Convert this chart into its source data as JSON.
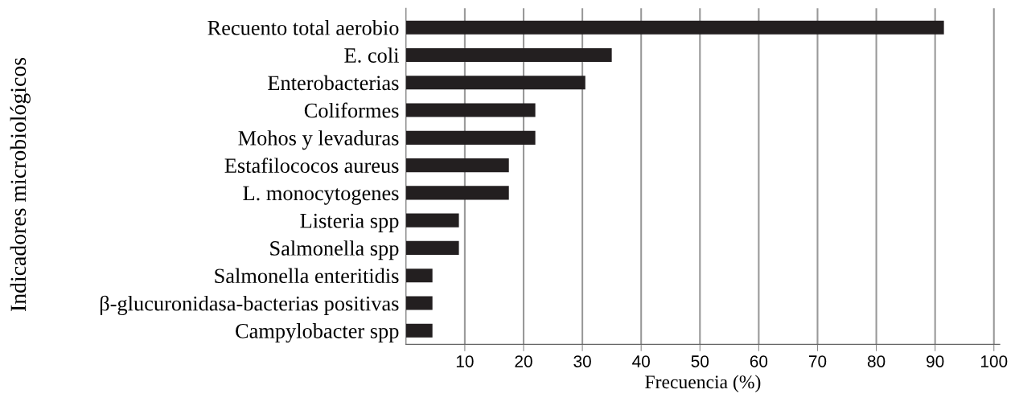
{
  "chart_data": {
    "type": "bar",
    "orientation": "horizontal",
    "xlabel": "Frecuencia (%)",
    "ylabel": "Indicadores microbiológicos",
    "categories": [
      "Recuento total aerobio",
      "E. coli",
      "Enterobacterias",
      "Coliformes",
      "Mohos y levaduras",
      "Estafilococos aureus",
      "L. monocytogenes",
      "Listeria spp",
      "Salmonella spp",
      "Salmonella enteritidis",
      "β-glucuronidasa-bacterias positivas",
      "Campylobacter spp"
    ],
    "values": [
      91.5,
      35,
      30.5,
      22,
      22,
      17.5,
      17.5,
      9,
      9,
      4.5,
      4.5,
      4.5
    ],
    "color": "#231f20",
    "xlim": [
      0,
      101
    ],
    "xticks": [
      10,
      20,
      30,
      40,
      50,
      60,
      70,
      80,
      90,
      100
    ],
    "grid": "x"
  }
}
